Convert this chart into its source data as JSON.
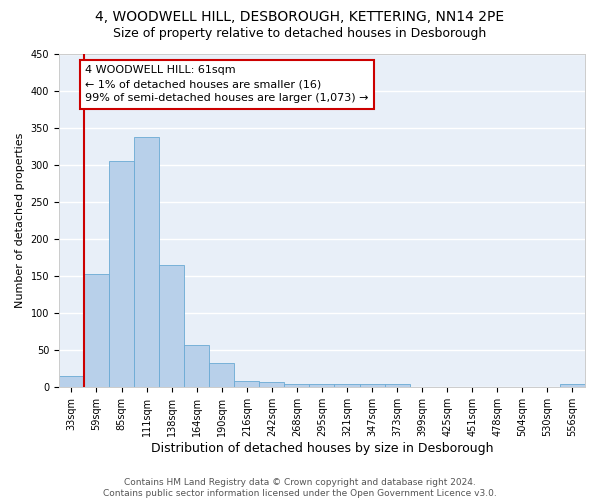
{
  "title": "4, WOODWELL HILL, DESBOROUGH, KETTERING, NN14 2PE",
  "subtitle": "Size of property relative to detached houses in Desborough",
  "xlabel": "Distribution of detached houses by size in Desborough",
  "ylabel": "Number of detached properties",
  "categories": [
    "33sqm",
    "59sqm",
    "85sqm",
    "111sqm",
    "138sqm",
    "164sqm",
    "190sqm",
    "216sqm",
    "242sqm",
    "268sqm",
    "295sqm",
    "321sqm",
    "347sqm",
    "373sqm",
    "399sqm",
    "425sqm",
    "451sqm",
    "478sqm",
    "504sqm",
    "530sqm",
    "556sqm"
  ],
  "values": [
    15,
    153,
    305,
    338,
    165,
    57,
    33,
    9,
    7,
    5,
    4,
    4,
    4,
    4,
    0,
    0,
    0,
    0,
    0,
    0,
    4
  ],
  "bar_color": "#b8d0ea",
  "bar_edge_color": "#6aaad4",
  "background_color": "#e8eff8",
  "grid_color": "#ffffff",
  "annotation_box_text": "4 WOODWELL HILL: 61sqm\n← 1% of detached houses are smaller (16)\n99% of semi-detached houses are larger (1,073) →",
  "annotation_box_color": "#ffffff",
  "annotation_box_edge_color": "#cc0000",
  "vline_x": 0.5,
  "vline_color": "#cc0000",
  "ylim": [
    0,
    450
  ],
  "yticks": [
    0,
    50,
    100,
    150,
    200,
    250,
    300,
    350,
    400,
    450
  ],
  "fig_bg_color": "#ffffff",
  "footer_line1": "Contains HM Land Registry data © Crown copyright and database right 2024.",
  "footer_line2": "Contains public sector information licensed under the Open Government Licence v3.0.",
  "title_fontsize": 10,
  "subtitle_fontsize": 9,
  "xlabel_fontsize": 9,
  "ylabel_fontsize": 8,
  "tick_fontsize": 7,
  "annotation_fontsize": 8,
  "footer_fontsize": 6.5
}
